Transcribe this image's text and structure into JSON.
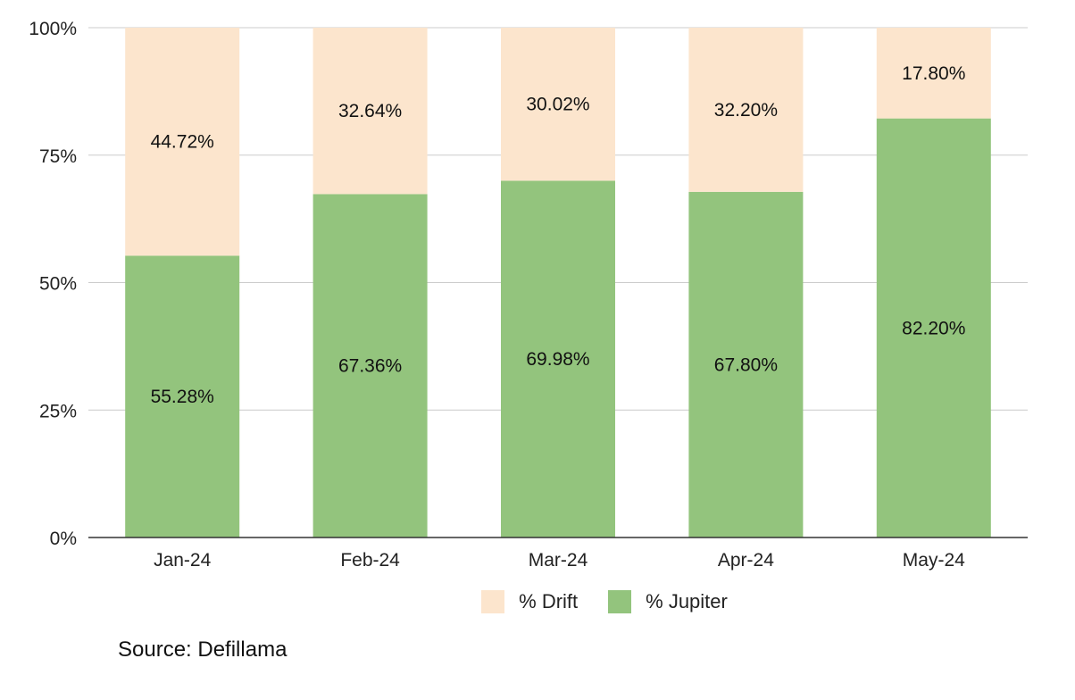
{
  "chart_data": {
    "type": "bar",
    "stacked": true,
    "normalized": true,
    "categories": [
      "Jan-24",
      "Feb-24",
      "Mar-24",
      "Apr-24",
      "May-24"
    ],
    "series": [
      {
        "name": "% Jupiter",
        "color": "#93c47d",
        "values": [
          55.28,
          67.36,
          69.98,
          67.8,
          82.2
        ],
        "labels": [
          "55.28%",
          "67.36%",
          "69.98%",
          "67.80%",
          "82.20%"
        ]
      },
      {
        "name": "% Drift",
        "color": "#fce5cd",
        "values": [
          44.72,
          32.64,
          30.02,
          32.2,
          17.8
        ],
        "labels": [
          "44.72%",
          "32.64%",
          "30.02%",
          "32.20%",
          "17.80%"
        ]
      }
    ],
    "ylim": [
      0,
      100
    ],
    "yticks": [
      0,
      25,
      50,
      75,
      100
    ],
    "ytick_labels": [
      "0%",
      "25%",
      "50%",
      "75%",
      "100%"
    ],
    "grid": true,
    "legend": {
      "position": "bottom",
      "order": [
        "% Drift",
        "% Jupiter"
      ]
    },
    "title": "",
    "xlabel": "",
    "ylabel": ""
  },
  "source_note": "Source: Defillama"
}
